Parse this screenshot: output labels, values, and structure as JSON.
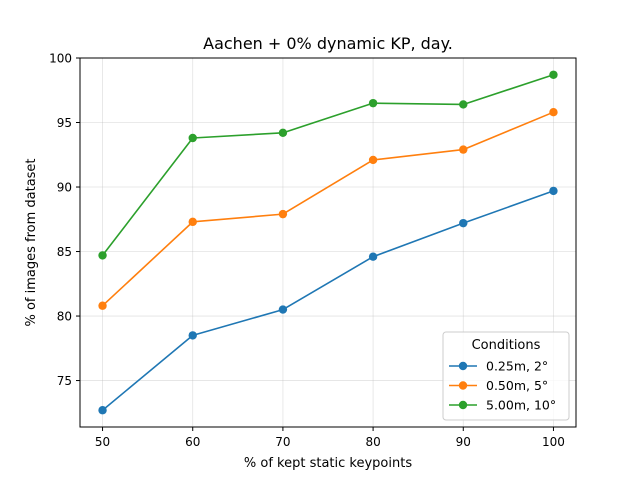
{
  "chart_data": {
    "type": "line",
    "title": "Aachen + 0% dynamic KP, day.",
    "xlabel": "% of kept static keypoints",
    "ylabel": "% of images from dataset",
    "x": [
      50,
      60,
      70,
      80,
      90,
      100
    ],
    "xlim": [
      47.5,
      102.5
    ],
    "ylim": [
      71.4,
      100
    ],
    "xticks": [
      50,
      60,
      70,
      80,
      90,
      100
    ],
    "yticks": [
      75,
      80,
      85,
      90,
      95,
      100
    ],
    "grid": true,
    "legend": {
      "title": "Conditions",
      "placement": "lower-right"
    },
    "series": [
      {
        "name": "0.25m, 2°",
        "color": "#1f77b4",
        "values": [
          72.7,
          78.5,
          80.5,
          84.6,
          87.2,
          89.7
        ]
      },
      {
        "name": "0.50m, 5°",
        "color": "#ff7f0e",
        "values": [
          80.8,
          87.3,
          87.9,
          92.1,
          92.9,
          95.8
        ]
      },
      {
        "name": "5.00m, 10°",
        "color": "#2ca02c",
        "values": [
          84.7,
          93.8,
          94.2,
          96.5,
          96.4,
          98.7
        ]
      }
    ]
  }
}
